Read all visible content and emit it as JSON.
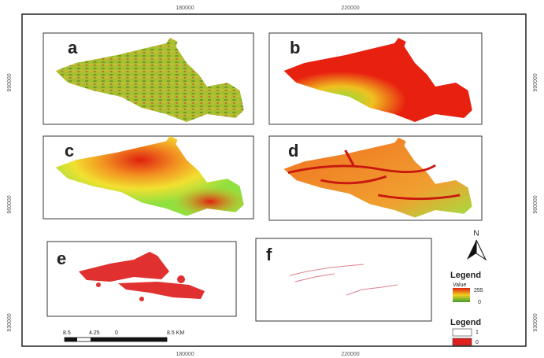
{
  "frame": {
    "top_ticks": [
      "180000",
      "220000"
    ],
    "bottom_ticks": [
      "180000",
      "220000"
    ],
    "left_ticks": [
      "990000",
      "960000",
      "930000"
    ],
    "right_ticks": [
      "990000",
      "960000",
      "930000"
    ]
  },
  "panels": [
    {
      "label": "a"
    },
    {
      "label": "b"
    },
    {
      "label": "c"
    },
    {
      "label": "d"
    },
    {
      "label": "e"
    },
    {
      "label": "f"
    }
  ],
  "north": "N",
  "legend_value": {
    "title": "Legend",
    "subtitle": "Value",
    "high": "255",
    "low": "0"
  },
  "legend_binary": {
    "title": "Legend",
    "items": [
      "1",
      "0"
    ]
  },
  "scale_bar": {
    "labels": [
      "8.5",
      "4.25",
      "0",
      "8.5 KM"
    ]
  }
}
